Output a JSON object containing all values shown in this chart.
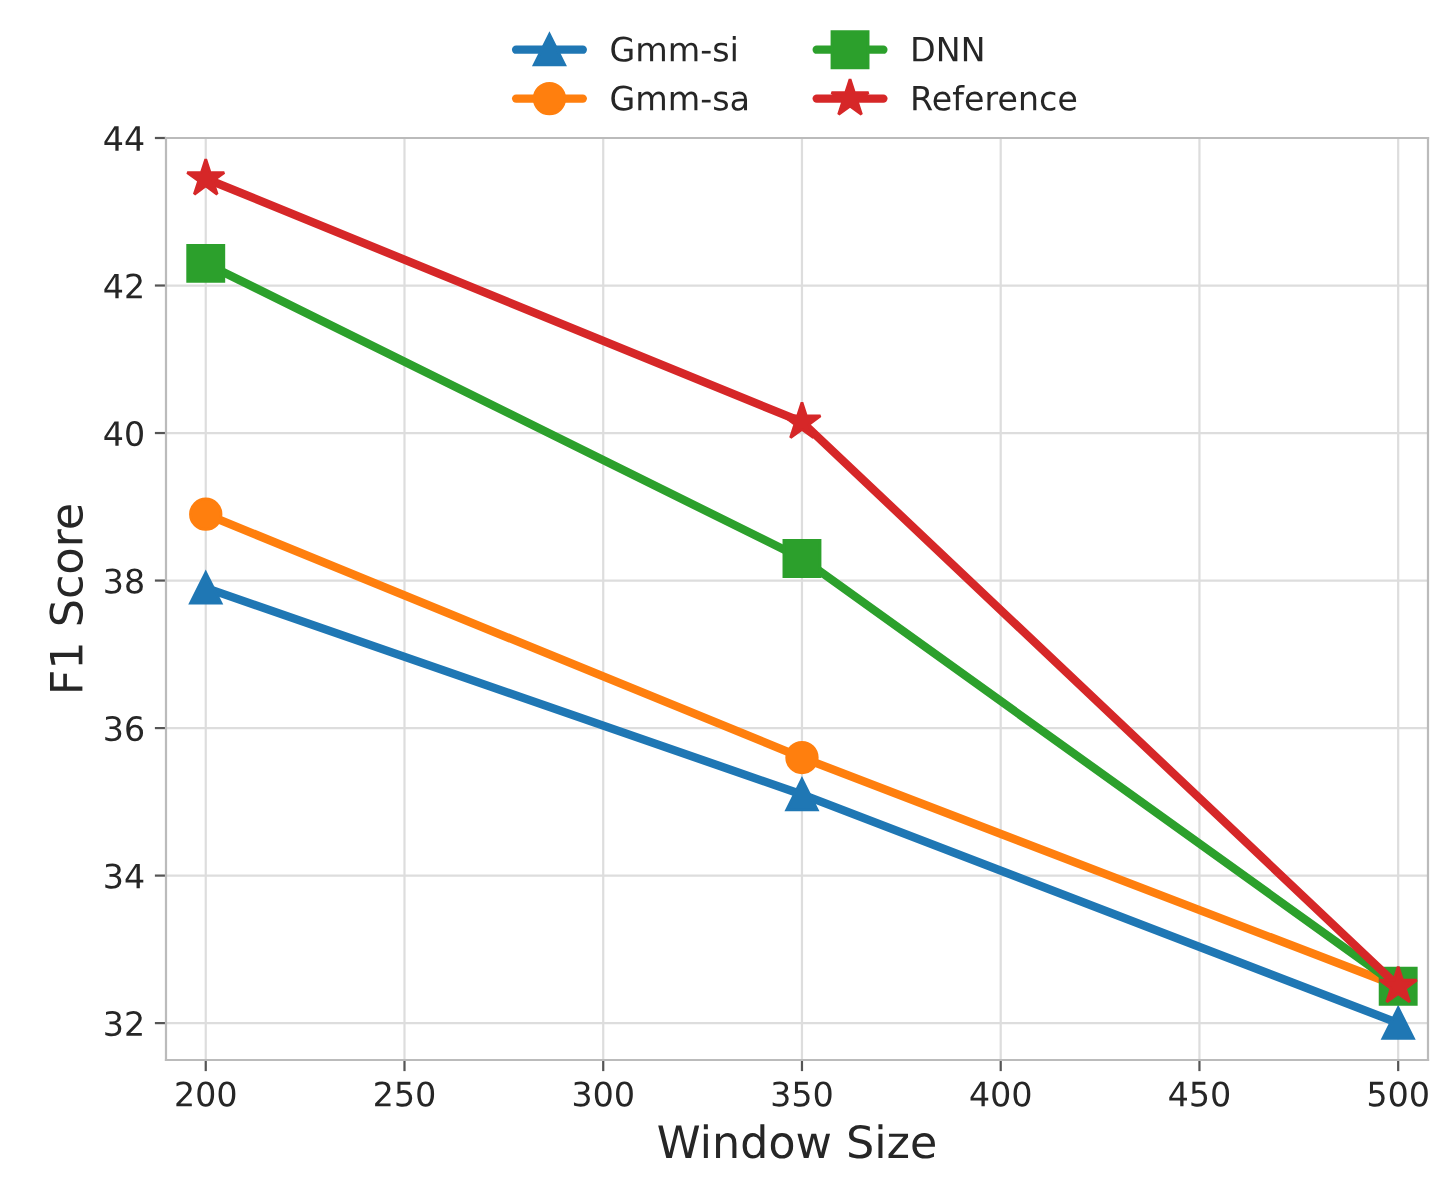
{
  "chart_data": {
    "type": "line",
    "xlabel": "Window Size",
    "ylabel": "F1 Score",
    "x": [
      200,
      350,
      500
    ],
    "series": [
      {
        "name": "Gmm-si",
        "color": "#1f77b4",
        "marker": "triangle",
        "values": [
          37.9,
          35.1,
          32.0
        ]
      },
      {
        "name": "Gmm-sa",
        "color": "#ff7f0e",
        "marker": "circle",
        "values": [
          38.9,
          35.6,
          32.5
        ]
      },
      {
        "name": "DNN",
        "color": "#2ca02c",
        "marker": "square",
        "values": [
          42.3,
          38.3,
          32.5
        ]
      },
      {
        "name": "Reference",
        "color": "#d62728",
        "marker": "star",
        "values": [
          43.45,
          40.15,
          32.5
        ]
      }
    ],
    "xlim": [
      190,
      507.5
    ],
    "ylim": [
      31.5,
      44
    ],
    "xticks": [
      200,
      250,
      300,
      350,
      400,
      450,
      500
    ],
    "yticks": [
      32,
      34,
      36,
      38,
      40,
      42,
      44
    ],
    "grid": true,
    "legend": "top",
    "line_style": "solid"
  }
}
